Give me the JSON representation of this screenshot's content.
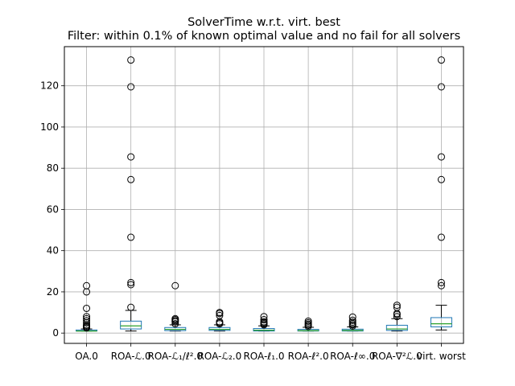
{
  "chart_data": {
    "type": "box",
    "title": "SolverTime w.r.t. virt. best",
    "subtitle": "Filter: within 0.1% of known optimal value and no fail for all solvers",
    "xlabel": "",
    "ylabel": "",
    "ylim": [
      -5,
      139
    ],
    "yticks": [
      0,
      20,
      40,
      60,
      80,
      100,
      120
    ],
    "grid": true,
    "colors": {
      "box": "#1f77b4",
      "median": "#2ca02c",
      "whisker": "#000000",
      "flier": "#000000",
      "grid": "#b0b0b0"
    },
    "categories": [
      "OA.0",
      "ROA-ℒ.0",
      "ROA-ℒ₁/ℓ².0",
      "ROA-ℒ₂.0",
      "ROA-ℓ₁.0",
      "ROA-ℓ².0",
      "ROA-ℓ∞.0",
      "ROA-∇²ℒ.0",
      "virt. worst"
    ],
    "boxes": [
      {
        "whislo": 1.0,
        "q1": 1.0,
        "med": 1.0,
        "q3": 1.5,
        "whishi": 2.0,
        "fliers": [
          2.5,
          3,
          3.5,
          4,
          5,
          6,
          7,
          8,
          12,
          20,
          23
        ]
      },
      {
        "whislo": 1.0,
        "q1": 2.0,
        "med": 3.5,
        "q3": 5.8,
        "whishi": 11,
        "fliers": [
          12.5,
          23.5,
          24.5,
          46.5,
          74.5,
          85.5,
          119.5,
          132.5
        ]
      },
      {
        "whislo": 1.0,
        "q1": 1.2,
        "med": 1.8,
        "q3": 2.7,
        "whishi": 4.0,
        "fliers": [
          4.5,
          5.5,
          6.0,
          6.5,
          7.0,
          23.0
        ]
      },
      {
        "whislo": 1.0,
        "q1": 1.3,
        "med": 1.8,
        "q3": 2.7,
        "whishi": 4.0,
        "fliers": [
          4.5,
          5.0,
          5.5,
          8.5,
          9.5,
          10.0
        ]
      },
      {
        "whislo": 1.0,
        "q1": 1.0,
        "med": 1.4,
        "q3": 2.2,
        "whishi": 3.5,
        "fliers": [
          4.0,
          4.5,
          5.0,
          5.5,
          6.5,
          8.0
        ]
      },
      {
        "whislo": 1.0,
        "q1": 1.0,
        "med": 1.2,
        "q3": 1.8,
        "whishi": 2.8,
        "fliers": [
          3.2,
          3.8,
          4.3,
          5.0,
          5.8
        ]
      },
      {
        "whislo": 1.0,
        "q1": 1.0,
        "med": 1.3,
        "q3": 1.9,
        "whishi": 3.0,
        "fliers": [
          3.4,
          4.0,
          4.6,
          5.3,
          6.2,
          7.8
        ]
      },
      {
        "whislo": 1.0,
        "q1": 1.3,
        "med": 2.0,
        "q3": 3.8,
        "whishi": 7.0,
        "fliers": [
          8.0,
          9.0,
          9.5,
          12.5,
          13.5
        ]
      },
      {
        "whislo": 1.5,
        "q1": 3.0,
        "med": 4.5,
        "q3": 7.5,
        "whishi": 13.5,
        "fliers": [
          23.0,
          24.5,
          46.5,
          74.5,
          85.5,
          119.5,
          132.5
        ]
      }
    ]
  }
}
